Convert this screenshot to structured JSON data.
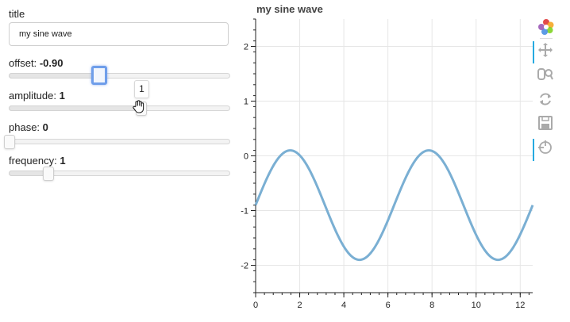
{
  "widgets": {
    "title": {
      "label": "title",
      "value": "my sine wave"
    },
    "sliders": [
      {
        "key": "offset",
        "label": "offset:",
        "display": "-0.90",
        "value": -0.9,
        "start": -5,
        "end": 5,
        "active": true
      },
      {
        "key": "amplitude",
        "label": "amplitude:",
        "display": "1",
        "value": 1,
        "start": -5,
        "end": 5,
        "active": false
      },
      {
        "key": "phase",
        "label": "phase:",
        "display": "0",
        "value": 0,
        "start": 0,
        "end": 6.28,
        "active": false
      },
      {
        "key": "frequency",
        "label": "frequency:",
        "display": "1",
        "value": 1,
        "start": 0.1,
        "end": 5.1,
        "active": false
      }
    ],
    "amplitude_tooltip": "1"
  },
  "plot": {
    "title": "my sine wave"
  },
  "chart_data": {
    "type": "line",
    "title": "my sine wave",
    "xlabel": "",
    "ylabel": "",
    "xlim": [
      0,
      12.566
    ],
    "ylim": [
      -2.5,
      2.5
    ],
    "x_ticks": [
      0,
      2,
      4,
      6,
      8,
      10,
      12
    ],
    "y_ticks": [
      -2,
      -1,
      0,
      1,
      2
    ],
    "grid": true,
    "function": "y = amplitude * sin(frequency * x + phase) + offset",
    "params": {
      "amplitude": 1,
      "frequency": 1,
      "phase": 0,
      "offset": -0.9
    },
    "line_color": "#7aafd3",
    "series": [
      {
        "x": [
          0,
          0.785,
          1.571,
          2.356,
          3.142,
          3.927,
          4.712,
          5.498,
          6.283,
          7.069,
          7.854,
          8.639,
          9.425,
          10.21,
          10.996,
          11.781,
          12.566
        ],
        "values": [
          -0.9,
          -0.19,
          0.1,
          -0.19,
          -0.9,
          -1.61,
          -1.9,
          -1.61,
          -0.9,
          -0.19,
          0.1,
          -0.19,
          -0.9,
          -1.61,
          -1.9,
          -1.61,
          -0.9
        ]
      }
    ]
  },
  "toolbar": {
    "tools": [
      {
        "name": "bokeh-logo-icon",
        "active": false
      },
      {
        "name": "pan-icon",
        "active": true
      },
      {
        "name": "box-zoom-icon",
        "active": false
      },
      {
        "name": "reset-icon",
        "active": false
      },
      {
        "name": "save-icon",
        "active": false
      },
      {
        "name": "hover-icon",
        "active": true
      }
    ]
  }
}
